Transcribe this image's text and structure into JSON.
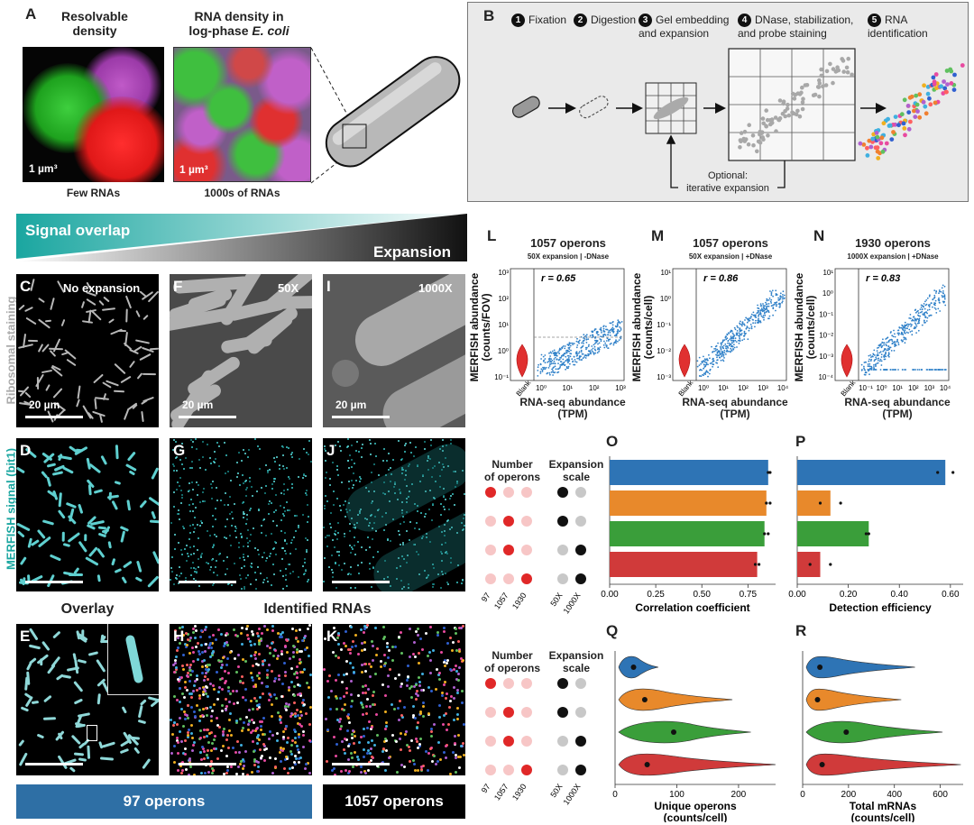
{
  "panel_labels": {
    "A": "A",
    "B": "B",
    "C": "C",
    "D": "D",
    "E": "E",
    "F": "F",
    "G": "G",
    "H": "H",
    "I": "I",
    "J": "J",
    "K": "K",
    "L": "L",
    "M": "M",
    "N": "N",
    "O": "O",
    "P": "P",
    "Q": "Q",
    "R": "R"
  },
  "panelA": {
    "left_title": "Resolvable density",
    "right_title_line1": "RNA density in",
    "right_title_line2": "log-phase",
    "right_title_species": "E. coli",
    "scale": "1 µm³",
    "left_caption": "Few RNAs",
    "right_caption": "1000s of RNAs"
  },
  "panelB": {
    "steps": [
      {
        "n": "1",
        "label": "Fixation"
      },
      {
        "n": "2",
        "label": "Digestion"
      },
      {
        "n": "3",
        "label": "Gel embedding and expansion"
      },
      {
        "n": "4",
        "label": "DNase, stabilization, and probe staining"
      },
      {
        "n": "5",
        "label": "RNA identification"
      }
    ],
    "optional_line1": "Optional:",
    "optional_line2": "iterative expansion"
  },
  "gradient": {
    "signal": "Signal overlap",
    "expansion": "Expansion"
  },
  "rows": {
    "ribosomal": "Ribosomal staining",
    "merfish": "MERFISH signal (bit1)"
  },
  "micro": {
    "c_label": "No expansion",
    "f_label": "50X",
    "i_label": "1000X",
    "scalebar": "20 µm"
  },
  "overlay_title": "Overlay",
  "identified_title": "Identified RNAs",
  "banner_97": "97 operons",
  "banner_1057": "1057 operons",
  "colors": {
    "blue": "#2e74b5",
    "orange": "#e8892b",
    "green": "#3a9e3a",
    "red": "#d03a3a",
    "teal": "#1aa6a0",
    "scatter": "#2f80c8"
  },
  "scatter_panels": [
    {
      "title": "1057 operons",
      "subtitle": "50X expansion | -DNase",
      "r": "r = 0.65",
      "ylabel_line1": "MERFISH abundance",
      "ylabel_line2": "(counts/FOV)",
      "yticks": [
        "10⁻¹",
        "10⁰",
        "10¹",
        "10²",
        "10³"
      ],
      "xticks": [
        "10⁰",
        "10¹",
        "10²",
        "10³"
      ]
    },
    {
      "title": "1057 operons",
      "subtitle": "50X expansion | +DNase",
      "r": "r = 0.86",
      "ylabel_line1": "MERFISH abundance",
      "ylabel_line2": "(counts/cell)",
      "yticks": [
        "10⁻³",
        "10⁻²",
        "10⁻¹",
        "10⁰",
        "10¹"
      ],
      "xticks": [
        "10⁰",
        "10¹",
        "10²",
        "10³",
        "10⁴"
      ]
    },
    {
      "title": "1930 operons",
      "subtitle": "1000X expansion | +DNase",
      "r": "r = 0.83",
      "ylabel_line1": "MERFISH abundance",
      "ylabel_line2": "(counts/cell)",
      "yticks": [
        "10⁻⁴",
        "10⁻³",
        "10⁻²",
        "10⁻¹",
        "10⁰",
        "10¹"
      ],
      "xticks": [
        "10⁻¹",
        "10⁰",
        "10¹",
        "10²",
        "10³",
        "10⁴"
      ]
    }
  ],
  "scatter_common": {
    "blank": "Blank",
    "xlabel_line1": "RNA-seq abundance",
    "xlabel_line2": "(TPM)"
  },
  "legend": {
    "number_line1": "Number",
    "number_line2": "of operons",
    "scale_line1": "Expansion",
    "scale_line2": "scale",
    "op_labels": [
      "97",
      "1057",
      "1930"
    ],
    "scale_labels": [
      "50X",
      "1000X"
    ],
    "rows": [
      {
        "op": 0,
        "scale": 0
      },
      {
        "op": 1,
        "scale": 0
      },
      {
        "op": 1,
        "scale": 1
      },
      {
        "op": 2,
        "scale": 1
      }
    ]
  },
  "chart_data": [
    {
      "type": "bar",
      "panel": "O",
      "orientation": "horizontal",
      "categories": [
        "97 operons 50X",
        "1057 operons 50X",
        "1057 operons 1000X",
        "1930 operons 1000X"
      ],
      "values": [
        0.86,
        0.85,
        0.84,
        0.8
      ],
      "points": [
        [
          0.87,
          0.86
        ],
        [
          0.85,
          0.87
        ],
        [
          0.84,
          0.86
        ],
        [
          0.79,
          0.81
        ]
      ],
      "xlabel": "Correlation coefficient",
      "xlim": [
        0,
        0.9
      ],
      "ticks": [
        "0.00",
        "0.25",
        "0.50",
        "0.75"
      ],
      "tick_values": [
        0,
        0.25,
        0.5,
        0.75
      ]
    },
    {
      "type": "bar",
      "panel": "P",
      "orientation": "horizontal",
      "categories": [
        "97 operons 50X",
        "1057 operons 50X",
        "1057 operons 1000X",
        "1930 operons 1000X"
      ],
      "values": [
        0.58,
        0.13,
        0.28,
        0.09
      ],
      "points": [
        [
          0.55,
          0.61
        ],
        [
          0.09,
          0.17
        ],
        [
          0.27,
          0.28
        ],
        [
          0.05,
          0.13
        ]
      ],
      "xlabel": "Detection efficiency",
      "xlim": [
        0,
        0.65
      ],
      "ticks": [
        "0.00",
        "0.20",
        "0.40",
        "0.60"
      ],
      "tick_values": [
        0,
        0.2,
        0.4,
        0.6
      ]
    },
    {
      "type": "violin",
      "panel": "Q",
      "categories": [
        "97 operons 50X",
        "1057 operons 50X",
        "1057 operons 1000X",
        "1930 operons 1000X"
      ],
      "medians": [
        30,
        48,
        95,
        52
      ],
      "max": [
        70,
        190,
        220,
        260
      ],
      "xlabel_line1": "Unique operons",
      "xlabel_line2": "(counts/cell)",
      "xlim": [
        0,
        260
      ],
      "ticks": [
        "0",
        "100",
        "200"
      ],
      "tick_values": [
        0,
        100,
        200
      ]
    },
    {
      "type": "violin",
      "panel": "R",
      "categories": [
        "97 operons 50X",
        "1057 operons 50X",
        "1057 operons 1000X",
        "1930 operons 1000X"
      ],
      "medians": [
        75,
        65,
        190,
        85
      ],
      "max": [
        490,
        430,
        610,
        690
      ],
      "xlabel_line1": "Total mRNAs",
      "xlabel_line2": "(counts/cell)",
      "xlim": [
        0,
        700
      ],
      "ticks": [
        "0",
        "200",
        "400",
        "600"
      ],
      "tick_values": [
        0,
        200,
        400,
        600
      ]
    }
  ]
}
